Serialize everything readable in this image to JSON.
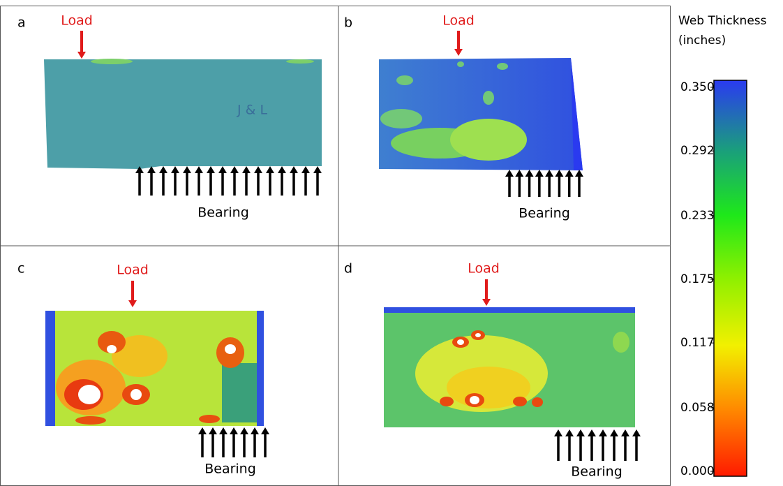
{
  "panels": [
    {
      "label": "a",
      "load": "Load",
      "bearing": "Bearing"
    },
    {
      "label": "b",
      "load": "Load",
      "bearing": "Bearing"
    },
    {
      "label": "c",
      "load": "Load",
      "bearing": "Bearing"
    },
    {
      "label": "d",
      "load": "Load",
      "bearing": "Bearing"
    }
  ],
  "colorbar": {
    "title": [
      "Web Thickness",
      "(inches)"
    ],
    "range": [
      0,
      0.35
    ],
    "ticks": [
      {
        "value": 0.35,
        "label": "0.350"
      },
      {
        "value": 0.292,
        "label": "0.292"
      },
      {
        "value": 0.233,
        "label": "0.233"
      },
      {
        "value": 0.175,
        "label": "0.175"
      },
      {
        "value": 0.117,
        "label": "0.117"
      },
      {
        "value": 0.058,
        "label": "0.058"
      },
      {
        "value": 0,
        "label": "0.000"
      }
    ]
  }
}
